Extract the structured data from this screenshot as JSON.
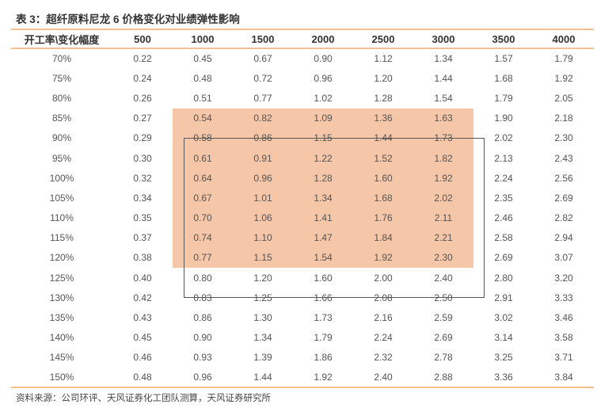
{
  "title": "表 3：超纤原料尼龙 6 价格变化对业绩弹性影响",
  "table": {
    "headers": [
      "开工率\\变化幅度",
      "500",
      "1000",
      "1500",
      "2000",
      "2500",
      "3000",
      "3500",
      "4000"
    ],
    "rows": [
      [
        "70%",
        "0.22",
        "0.45",
        "0.67",
        "0.90",
        "1.12",
        "1.34",
        "1.57",
        "1.79"
      ],
      [
        "75%",
        "0.24",
        "0.48",
        "0.72",
        "0.96",
        "1.20",
        "1.44",
        "1.68",
        "1.92"
      ],
      [
        "80%",
        "0.26",
        "0.51",
        "0.77",
        "1.02",
        "1.28",
        "1.54",
        "1.79",
        "2.05"
      ],
      [
        "85%",
        "0.27",
        "0.54",
        "0.82",
        "1.09",
        "1.36",
        "1.63",
        "1.90",
        "2.18"
      ],
      [
        "90%",
        "0.29",
        "0.58",
        "0.86",
        "1.15",
        "1.44",
        "1.73",
        "2.02",
        "2.30"
      ],
      [
        "95%",
        "0.30",
        "0.61",
        "0.91",
        "1.22",
        "1.52",
        "1.82",
        "2.13",
        "2.43"
      ],
      [
        "100%",
        "0.32",
        "0.64",
        "0.96",
        "1.28",
        "1.60",
        "1.92",
        "2.24",
        "2.56"
      ],
      [
        "105%",
        "0.34",
        "0.67",
        "1.01",
        "1.34",
        "1.68",
        "2.02",
        "2.35",
        "2.69"
      ],
      [
        "110%",
        "0.35",
        "0.70",
        "1.06",
        "1.41",
        "1.76",
        "2.11",
        "2.46",
        "2.82"
      ],
      [
        "115%",
        "0.37",
        "0.74",
        "1.10",
        "1.47",
        "1.84",
        "2.21",
        "2.58",
        "2.94"
      ],
      [
        "120%",
        "0.38",
        "0.77",
        "1.15",
        "1.54",
        "1.92",
        "2.30",
        "2.69",
        "3.07"
      ],
      [
        "125%",
        "0.40",
        "0.80",
        "1.20",
        "1.60",
        "2.00",
        "2.40",
        "2.80",
        "3.20"
      ],
      [
        "130%",
        "0.42",
        "0.83",
        "1.25",
        "1.66",
        "2.08",
        "2.50",
        "2.91",
        "3.33"
      ],
      [
        "135%",
        "0.43",
        "0.86",
        "1.30",
        "1.73",
        "2.16",
        "2.59",
        "3.02",
        "3.46"
      ],
      [
        "140%",
        "0.45",
        "0.90",
        "1.34",
        "1.79",
        "2.24",
        "2.69",
        "3.14",
        "3.58"
      ],
      [
        "145%",
        "0.46",
        "0.93",
        "1.39",
        "1.86",
        "2.32",
        "2.78",
        "3.25",
        "3.71"
      ],
      [
        "150%",
        "0.48",
        "0.96",
        "1.44",
        "1.92",
        "2.40",
        "2.88",
        "3.36",
        "3.84"
      ]
    ],
    "highlight": {
      "rows": [
        "85%",
        "120%"
      ],
      "columns": [
        "1000",
        "3000"
      ],
      "color": "#f5c6a8"
    }
  },
  "accent_color": "#f5be8c",
  "source": "资料来源：公司环评、天风证券化工团队测算，天风证券研究所"
}
